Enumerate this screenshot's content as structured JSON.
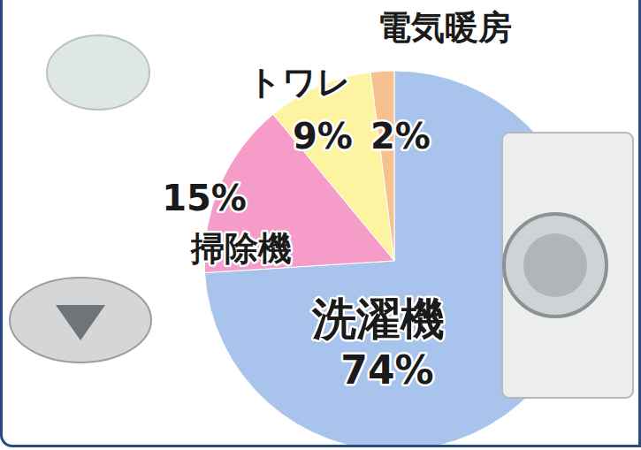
{
  "chart_data": {
    "type": "pie",
    "categories": [
      "洗濯機",
      "掃除機",
      "トワレ",
      "電気暖房"
    ],
    "values": [
      74,
      15,
      9,
      2
    ],
    "value_labels": [
      "74%",
      "15%",
      "9%",
      "2%"
    ],
    "colors": [
      "#a9c4ec",
      "#f59cc8",
      "#fdf4a2",
      "#f7c18f"
    ],
    "data_labels": true
  }
}
